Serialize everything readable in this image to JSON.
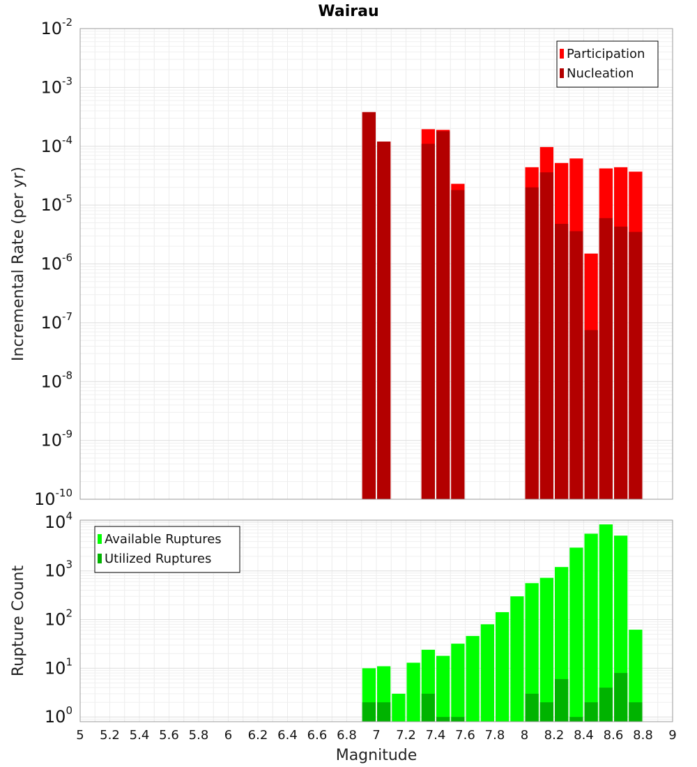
{
  "chart_data": [
    {
      "type": "bar",
      "title": "Wairau",
      "xlabel": "",
      "ylabel": "Incremental Rate (per yr)",
      "yscale": "log",
      "ylim": [
        1e-10,
        0.01
      ],
      "xlim": [
        5,
        9
      ],
      "bin_width": 0.1,
      "grid": true,
      "legend_position": "top-right",
      "y_ticks": [
        {
          "base": "10",
          "exp": "-10"
        },
        {
          "base": "10",
          "exp": "-9"
        },
        {
          "base": "10",
          "exp": "-8"
        },
        {
          "base": "10",
          "exp": "-7"
        },
        {
          "base": "10",
          "exp": "-6"
        },
        {
          "base": "10",
          "exp": "-5"
        },
        {
          "base": "10",
          "exp": "-4"
        },
        {
          "base": "10",
          "exp": "-3"
        },
        {
          "base": "10",
          "exp": "-2"
        }
      ],
      "x": [
        6.95,
        7.05,
        7.35,
        7.45,
        7.55,
        8.05,
        8.15,
        8.25,
        8.35,
        8.45,
        8.55,
        8.65,
        8.75
      ],
      "series": [
        {
          "name": "Participation",
          "color": "#ff0000",
          "values": [
            0.00038,
            0.00012,
            0.000195,
            0.00019,
            2.3e-05,
            4.4e-05,
            9.7e-05,
            5.2e-05,
            6.2e-05,
            1.5e-06,
            4.2e-05,
            4.4e-05,
            3.7e-05
          ]
        },
        {
          "name": "Nucleation",
          "color": "#b30000",
          "values": [
            0.00038,
            0.00012,
            0.00011,
            0.00018,
            1.8e-05,
            2e-05,
            3.6e-05,
            4.8e-06,
            3.6e-06,
            7.5e-08,
            6e-06,
            4.3e-06,
            3.5e-06
          ]
        }
      ]
    },
    {
      "type": "bar",
      "title": "",
      "xlabel": "Magnitude",
      "ylabel": "Rupture Count",
      "yscale": "log",
      "ylim": [
        0.8,
        11000
      ],
      "xlim": [
        5,
        9
      ],
      "bin_width": 0.1,
      "grid": true,
      "legend_position": "top-left",
      "y_ticks": [
        {
          "base": "10",
          "exp": "0"
        },
        {
          "base": "10",
          "exp": "1"
        },
        {
          "base": "10",
          "exp": "2"
        },
        {
          "base": "10",
          "exp": "3"
        },
        {
          "base": "10",
          "exp": "4"
        }
      ],
      "x_ticks": [
        "5",
        "5.2",
        "5.4",
        "5.6",
        "5.8",
        "6",
        "6.2",
        "6.4",
        "6.6",
        "6.8",
        "7",
        "7.2",
        "7.4",
        "7.6",
        "7.8",
        "8",
        "8.2",
        "8.4",
        "8.6",
        "8.8",
        "9"
      ],
      "x": [
        6.95,
        7.05,
        7.15,
        7.25,
        7.35,
        7.45,
        7.55,
        7.65,
        7.75,
        7.85,
        7.95,
        8.05,
        8.15,
        8.25,
        8.35,
        8.45,
        8.55,
        8.65,
        8.75
      ],
      "series": [
        {
          "name": "Available Ruptures",
          "color": "#00ff00",
          "values": [
            10,
            11,
            3,
            13,
            24,
            18,
            32,
            46,
            80,
            142,
            300,
            560,
            720,
            1200,
            3000,
            5800,
            9000,
            5300,
            62
          ]
        },
        {
          "name": "Utilized Ruptures",
          "color": "#00b300",
          "values": [
            2,
            2,
            0,
            0,
            3,
            1,
            1,
            0,
            0,
            0,
            0,
            3,
            2,
            6,
            1,
            2,
            4,
            8,
            2
          ]
        }
      ]
    }
  ]
}
